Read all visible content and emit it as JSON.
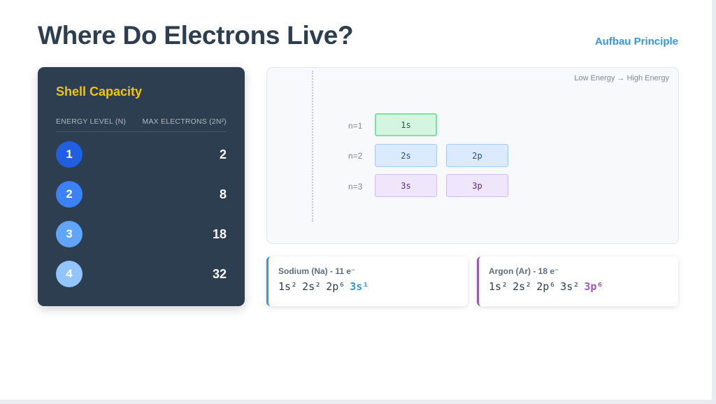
{
  "header": {
    "title": "Where Do Electrons Live?",
    "topic_link": "Aufbau Principle"
  },
  "shell_capacity": {
    "title": "Shell Capacity",
    "column_left": "ENERGY LEVEL (N)",
    "column_right": "MAX ELECTRONS (2N²)",
    "rows": [
      {
        "level": "1",
        "max": "2",
        "color": "#1f5fe0"
      },
      {
        "level": "2",
        "max": "8",
        "color": "#3b82f6"
      },
      {
        "level": "3",
        "max": "18",
        "color": "#60a5fa"
      },
      {
        "level": "4",
        "max": "32",
        "color": "#93c5fd"
      }
    ]
  },
  "energy_diagram": {
    "caption": "Low Energy → High Energy",
    "levels": [
      {
        "label": "n=1",
        "orbitals": [
          "1s"
        ]
      },
      {
        "label": "n=2",
        "orbitals": [
          "2s",
          "2p"
        ]
      },
      {
        "label": "n=3",
        "orbitals": [
          "3s",
          "3p"
        ]
      }
    ]
  },
  "configs": [
    {
      "name": "Sodium (Na) - 11 e⁻",
      "terms": [
        "1s²",
        "2s²",
        "2p⁶"
      ],
      "highlight": "3s¹",
      "accent": "#3498db"
    },
    {
      "name": "Argon (Ar) - 18 e⁻",
      "terms": [
        "1s²",
        "2s²",
        "2p⁶",
        "3s²"
      ],
      "highlight": "3p⁶",
      "accent": "#9b59b6"
    }
  ],
  "colors": {
    "dark_panel": "#2c3e50",
    "title_accent": "#f1c40f",
    "link": "#3498db"
  }
}
